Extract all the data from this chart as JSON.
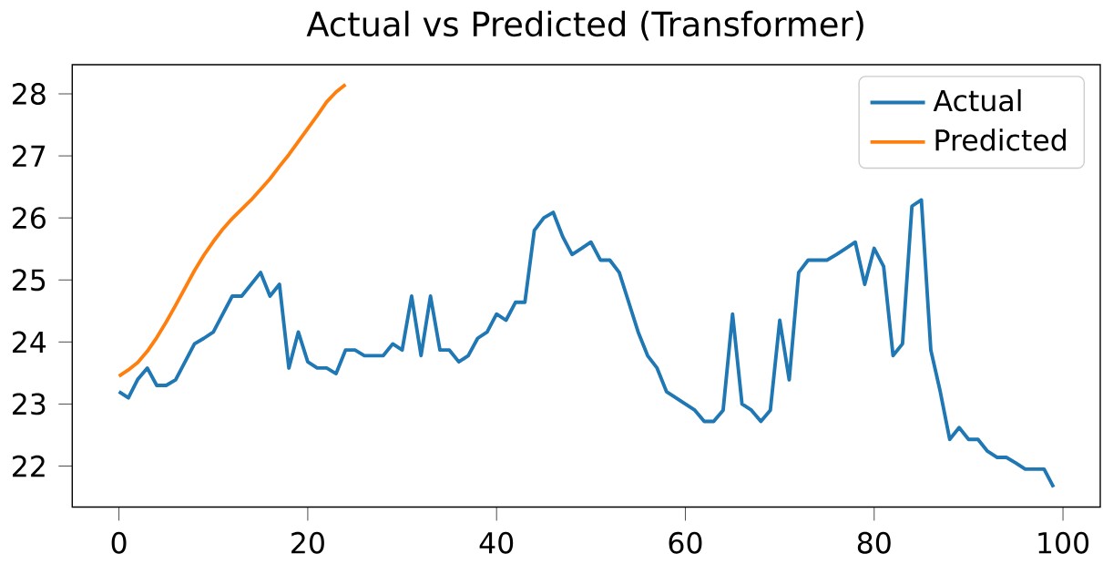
{
  "chart_data": {
    "type": "line",
    "title": "Actual vs Predicted (Transformer)",
    "x": [
      0,
      1,
      2,
      3,
      4,
      5,
      6,
      7,
      8,
      9,
      10,
      11,
      12,
      13,
      14,
      15,
      16,
      17,
      18,
      19,
      20,
      21,
      22,
      23,
      24,
      25,
      26,
      27,
      28,
      29,
      30,
      31,
      32,
      33,
      34,
      35,
      36,
      37,
      38,
      39,
      40,
      41,
      42,
      43,
      44,
      45,
      46,
      47,
      48,
      49,
      50,
      51,
      52,
      53,
      54,
      55,
      56,
      57,
      58,
      59,
      60,
      61,
      62,
      63,
      64,
      65,
      66,
      67,
      68,
      69,
      70,
      71,
      72,
      73,
      74,
      75,
      76,
      77,
      78,
      79,
      80,
      81,
      82,
      83,
      84,
      85,
      86,
      87,
      88,
      89,
      90,
      91,
      92,
      93,
      94,
      95,
      96,
      97,
      98,
      99
    ],
    "series": [
      {
        "name": "Actual",
        "color": "#1f77b4",
        "values": [
          23.2,
          23.1,
          23.4,
          23.58,
          23.3,
          23.3,
          23.39,
          23.68,
          23.97,
          24.06,
          24.16,
          24.45,
          24.74,
          24.74,
          24.93,
          25.12,
          24.74,
          24.93,
          23.58,
          24.16,
          23.68,
          23.58,
          23.58,
          23.49,
          23.87,
          23.87,
          23.78,
          23.78,
          23.78,
          23.97,
          23.87,
          24.74,
          23.78,
          24.74,
          23.87,
          23.87,
          23.68,
          23.78,
          24.06,
          24.16,
          24.45,
          24.35,
          24.64,
          24.64,
          25.8,
          26.0,
          26.09,
          25.7,
          25.41,
          25.51,
          25.61,
          25.32,
          25.32,
          25.12,
          24.64,
          24.16,
          23.78,
          23.58,
          23.2,
          23.1,
          23.0,
          22.9,
          22.72,
          22.72,
          22.9,
          24.45,
          23.0,
          22.9,
          22.72,
          22.9,
          24.35,
          23.39,
          25.12,
          25.32,
          25.32,
          25.32,
          25.41,
          25.51,
          25.61,
          24.93,
          25.51,
          25.22,
          23.78,
          23.97,
          26.19,
          26.29,
          23.87,
          23.2,
          22.43,
          22.62,
          22.43,
          22.43,
          22.24,
          22.14,
          22.14,
          22.05,
          21.95,
          21.95,
          21.95,
          21.66
        ]
      },
      {
        "name": "Predicted",
        "color": "#ff7f0e",
        "x": [
          0,
          1,
          2,
          3,
          4,
          5,
          6,
          7,
          8,
          9,
          10,
          11,
          12,
          13,
          14,
          15,
          16,
          17,
          18,
          19,
          20,
          21,
          22,
          23,
          24
        ],
        "values": [
          23.45,
          23.55,
          23.67,
          23.85,
          24.07,
          24.32,
          24.59,
          24.87,
          25.15,
          25.4,
          25.62,
          25.82,
          25.99,
          26.14,
          26.29,
          26.46,
          26.63,
          26.83,
          27.02,
          27.23,
          27.44,
          27.65,
          27.87,
          28.03,
          28.15
        ]
      }
    ],
    "xlim": [
      -4.95,
      103.95
    ],
    "ylim": [
      21.34,
      28.47
    ],
    "xticks": [
      0,
      20,
      40,
      60,
      80,
      100
    ],
    "yticks": [
      22,
      23,
      24,
      25,
      26,
      27,
      28
    ],
    "legend": "top right",
    "grid": false
  }
}
